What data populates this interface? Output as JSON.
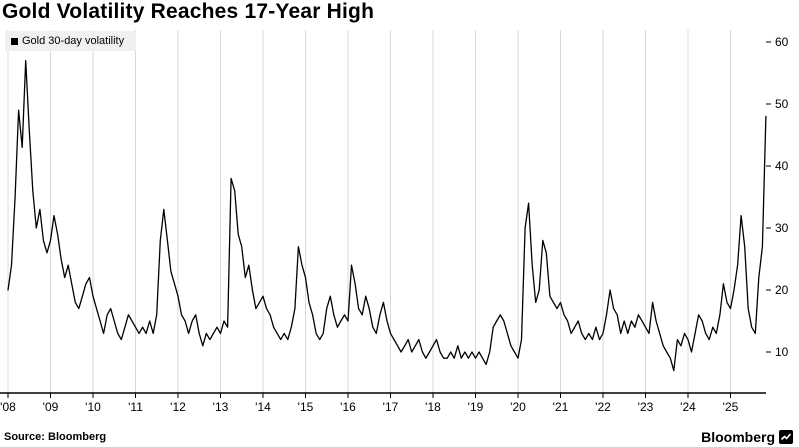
{
  "title": "Gold Volatility Reaches 17-Year High",
  "legend": {
    "label": "Gold 30-day volatility",
    "marker_color": "#000000"
  },
  "footer": {
    "source": "Source: Bloomberg",
    "brand": "Bloomberg"
  },
  "colors": {
    "line": "#000000",
    "grid": "#d9d9d9",
    "axis": "#000000",
    "background": "#ffffff",
    "legend_bg": "#f0f0f0"
  },
  "chart_data": {
    "type": "line",
    "title": "Gold Volatility Reaches 17-Year High",
    "xlabel": "",
    "ylabel": "",
    "grid": "vertical-only",
    "y_axis_side": "right",
    "legend_position": "top-left",
    "x_tick_labels": [
      "'08",
      "'09",
      "'10",
      "'11",
      "'12",
      "'13",
      "'14",
      "'15",
      "'16",
      "'17",
      "'18",
      "'19",
      "'20",
      "'21",
      "'22",
      "'23",
      "'24",
      "'25"
    ],
    "y_ticks": [
      10,
      20,
      30,
      40,
      50,
      60
    ],
    "x_start": 2008.0,
    "x_step": 0.0833333,
    "frequency": "monthly",
    "start_label": "2008-01",
    "end_label": "2025-11",
    "series": [
      {
        "name": "Gold 30-day volatility",
        "color": "#000000",
        "values": [
          20,
          24,
          35,
          49,
          43,
          57,
          46,
          36,
          30,
          33,
          28,
          26,
          28,
          32,
          29,
          25,
          22,
          24,
          21,
          18,
          17,
          19,
          21,
          22,
          19,
          17,
          15,
          13,
          16,
          17,
          15,
          13,
          12,
          14,
          16,
          15,
          14,
          13,
          14,
          13,
          15,
          13,
          16,
          28,
          33,
          28,
          23,
          21,
          19,
          16,
          15,
          13,
          15,
          16,
          13,
          11,
          13,
          12,
          13,
          14,
          13,
          15,
          14,
          38,
          36,
          29,
          27,
          22,
          24,
          20,
          17,
          18,
          19,
          17,
          16,
          14,
          13,
          12,
          13,
          12,
          14,
          17,
          27,
          24,
          22,
          18,
          16,
          13,
          12,
          13,
          17,
          19,
          16,
          14,
          15,
          16,
          15,
          24,
          21,
          17,
          16,
          19,
          17,
          14,
          13,
          16,
          18,
          15,
          13,
          12,
          11,
          10,
          11,
          12,
          10,
          11,
          12,
          10,
          9,
          10,
          11,
          12,
          10,
          9,
          9,
          10,
          9,
          11,
          9,
          10,
          9,
          10,
          9,
          10,
          9,
          8,
          10,
          14,
          15,
          16,
          15,
          13,
          11,
          10,
          9,
          12,
          30,
          34,
          24,
          18,
          20,
          28,
          26,
          19,
          18,
          17,
          18,
          16,
          15,
          13,
          14,
          15,
          13,
          12,
          13,
          12,
          14,
          12,
          13,
          16,
          20,
          17,
          16,
          13,
          15,
          13,
          15,
          14,
          16,
          15,
          14,
          13,
          18,
          15,
          13,
          11,
          10,
          9,
          7,
          12,
          11,
          13,
          12,
          10,
          13,
          16,
          15,
          13,
          12,
          14,
          13,
          16,
          21,
          18,
          17,
          20,
          24,
          32,
          27,
          17,
          14,
          13,
          22,
          27,
          48
        ]
      }
    ]
  }
}
